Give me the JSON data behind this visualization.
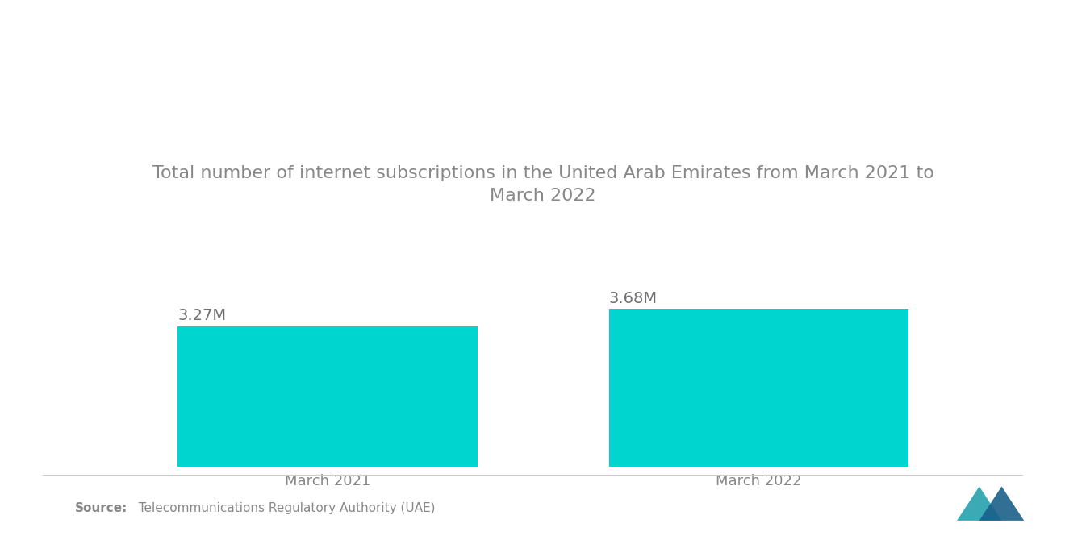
{
  "title": "Total number of internet subscriptions in the United Arab Emirates from March 2021 to\nMarch 2022",
  "categories": [
    "March 2021",
    "March 2022"
  ],
  "values": [
    3.27,
    3.68
  ],
  "labels": [
    "3.27M",
    "3.68M"
  ],
  "bar_color": "#00D5D0",
  "background_color": "#FFFFFF",
  "title_color": "#888888",
  "label_color": "#707070",
  "tick_color": "#888888",
  "source_bold": "Source:",
  "source_text": "  Telecommunications Regulatory Authority (UAE)",
  "source_color": "#888888",
  "ylim": [
    0,
    6.5
  ],
  "bar_width": 0.32,
  "title_fontsize": 16,
  "label_fontsize": 14,
  "tick_fontsize": 13,
  "source_fontsize": 11,
  "x_positions": [
    0.27,
    0.73
  ]
}
